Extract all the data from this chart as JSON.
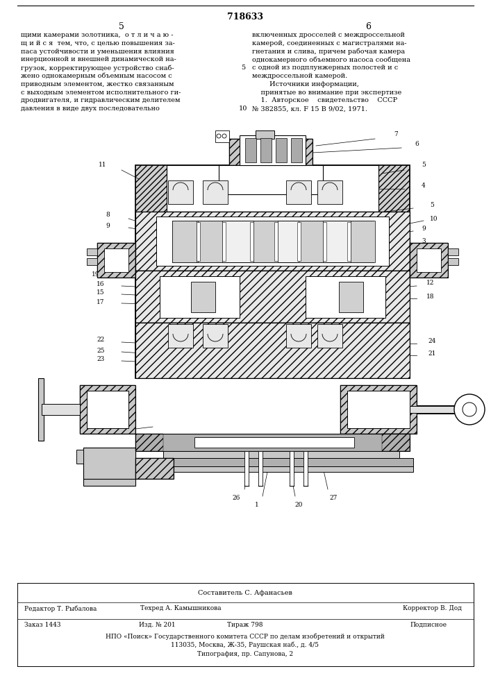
{
  "page_width": 7.07,
  "page_height": 10.0,
  "bg_color": "#ffffff",
  "patent_number": "718633",
  "page_numbers": [
    "5",
    "6"
  ],
  "top_text_left": [
    "щими камерами золотника,  о т л и ч а ю -",
    "щ и й с я  тем, что, с целью повышения за-",
    "паса устойчивости и уменьшения влияния",
    "инерционной и внешней динамической на-",
    "грузок, корректирующее устройство снаб-",
    "жено однокамерным объемным насосом с",
    "приводным элементом, жестко связанным",
    "с выходным элементом исполнительного ги-",
    "дродвигателя, и гидравлическим делителем",
    "давления в виде двух последовательно"
  ],
  "top_text_right": [
    "включенных дросселей с междроссельной",
    "камерой, соединенных с магистралями на-",
    "гнетания и слива, причем рабочая камера",
    "однокамерного объемного насоса сообщена",
    "с одной из подплунжерных полостей и с",
    "междроссельной камерой.",
    "        Источники информации,",
    "    принятые во внимание при экспертизе",
    "    1.  Авторское    свидетельство    СССР",
    "№ 382855, кл. F 15 В 9/02, 1971."
  ],
  "bottom_staff_line1": "Составитель С. Афанасьев",
  "bottom_staff": [
    [
      "Редактор Т. Рыбалова",
      "Техред А. Камышникова",
      "Корректор В. Дод"
    ],
    [
      "Заказ 1443",
      "Изд. № 201",
      "Тираж 798",
      "Подписное"
    ],
    [
      "НПО «Поиск» Государственного комитета СССР по делам изобретений и открытий"
    ],
    [
      "113035, Москва, Ж-35, Раушская наб., д. 4/5"
    ],
    [
      "Типография, пр. Сапунова, 2"
    ]
  ]
}
